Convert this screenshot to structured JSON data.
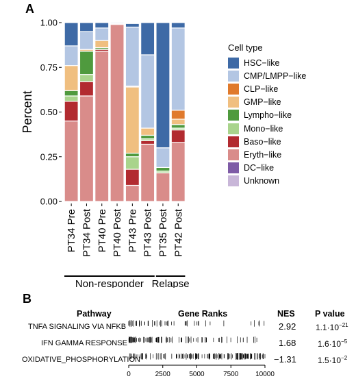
{
  "panel_a": {
    "label": "A",
    "legend_title": "Cell type"
  },
  "panel_b": {
    "label": "B",
    "headers": {
      "pathway": "Pathway",
      "ranks": "Gene Ranks",
      "nes": "NES",
      "pvalue": "P value"
    },
    "rows": [
      {
        "pathway": "TNFA SIGNALING VIA NFKB",
        "nes": "2.92",
        "p_mant": "1.1·10",
        "p_exp": "−21"
      },
      {
        "pathway": "IFN GAMMA RESPONSE",
        "nes": "1.68",
        "p_mant": "1.6·10",
        "p_exp": "−5"
      },
      {
        "pathway": "OXIDATIVE_PHOSPHORYLATION",
        "nes": "−1.31",
        "p_mant": "1.5·10",
        "p_exp": "−2"
      }
    ],
    "rank_ticks": [
      "0",
      "2500",
      "5000",
      "7500",
      "10000"
    ]
  },
  "chart_data": [
    {
      "type": "bar",
      "stacked": true,
      "ylabel": "Percent",
      "xlabel": "",
      "ylim": [
        0,
        1
      ],
      "yticks": [
        "0.00",
        "0.25",
        "0.50",
        "0.75",
        "1.00"
      ],
      "categories": [
        "PT34 Pre",
        "PT34 Post",
        "PT40 Pre",
        "PT40 Post",
        "PT43 Pre",
        "PT43 Post",
        "PT35 Post",
        "PT42 Post"
      ],
      "groups": [
        {
          "label": "Non-responder",
          "from": 0,
          "to": 5
        },
        {
          "label": "Relapse",
          "from": 6,
          "to": 7
        }
      ],
      "legend_position": "right",
      "series": [
        {
          "name": "Eryth−like",
          "color": "#d98c8a",
          "values": [
            0.45,
            0.59,
            0.84,
            0.99,
            0.09,
            0.32,
            0.16,
            0.33
          ]
        },
        {
          "name": "Baso−like",
          "color": "#b22b30",
          "values": [
            0.11,
            0.08,
            0.01,
            0,
            0.09,
            0.02,
            0,
            0.07
          ]
        },
        {
          "name": "Mono−like",
          "color": "#a9d48c",
          "values": [
            0.03,
            0.04,
            0,
            0,
            0.07,
            0.01,
            0.01,
            0.01
          ]
        },
        {
          "name": "Lympho−like",
          "color": "#4f9a3e",
          "values": [
            0.03,
            0.13,
            0.01,
            0,
            0.02,
            0.02,
            0.02,
            0.02
          ]
        },
        {
          "name": "GMP−like",
          "color": "#f0bf80",
          "values": [
            0.14,
            0.01,
            0.04,
            0.005,
            0.37,
            0.04,
            0,
            0.03
          ]
        },
        {
          "name": "CLP−like",
          "color": "#e07a2c",
          "values": [
            0,
            0,
            0,
            0,
            0.005,
            0,
            0,
            0.05
          ]
        },
        {
          "name": "CMP/LMPP−like",
          "color": "#b3c6e3",
          "values": [
            0.11,
            0.1,
            0.07,
            0,
            0.33,
            0.41,
            0.11,
            0.46
          ]
        },
        {
          "name": "HSC−like",
          "color": "#3e6aa6",
          "values": [
            0.13,
            0.05,
            0.03,
            0.005,
            0.02,
            0.18,
            0.7,
            0.03
          ]
        },
        {
          "name": "DC−like",
          "color": "#7e5ba6",
          "values": [
            0,
            0,
            0,
            0,
            0,
            0,
            0,
            0
          ]
        },
        {
          "name": "Unknown",
          "color": "#c8b6d8",
          "values": [
            0,
            0,
            0,
            0,
            0,
            0,
            0,
            0
          ]
        }
      ],
      "legend_order": [
        "HSC−like",
        "CMP/LMPP−like",
        "CLP−like",
        "GMP−like",
        "Lympho−like",
        "Mono−like",
        "Baso−like",
        "Eryth−like",
        "DC−like",
        "Unknown"
      ]
    }
  ]
}
